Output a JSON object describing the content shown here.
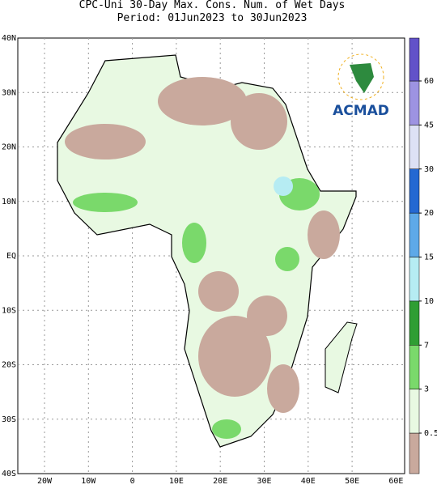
{
  "header": {
    "title": "CPC-Uni 30-Day Max. Cons. Num. of Wet Days",
    "period": "Period: 01Jun2023 to 30Jun2023"
  },
  "map": {
    "lat_labels": [
      "40N",
      "30N",
      "20N",
      "10N",
      "EQ",
      "10S",
      "20S",
      "30S",
      "40S"
    ],
    "lon_labels": [
      "20W",
      "10W",
      "0",
      "10E",
      "20E",
      "30E",
      "40E",
      "50E",
      "60E"
    ],
    "logo": "ACMAD"
  },
  "colorbar": {
    "levels": [
      0.5,
      3,
      7,
      10,
      15,
      20,
      30,
      45,
      60
    ],
    "colors": [
      "#c9a99d",
      "#e8f9e2",
      "#7ad96b",
      "#2f9e33",
      "#b6ecf3",
      "#5ea9e8",
      "#2468d2",
      "#dde1f5",
      "#9d93e2",
      "#6252c9"
    ]
  }
}
